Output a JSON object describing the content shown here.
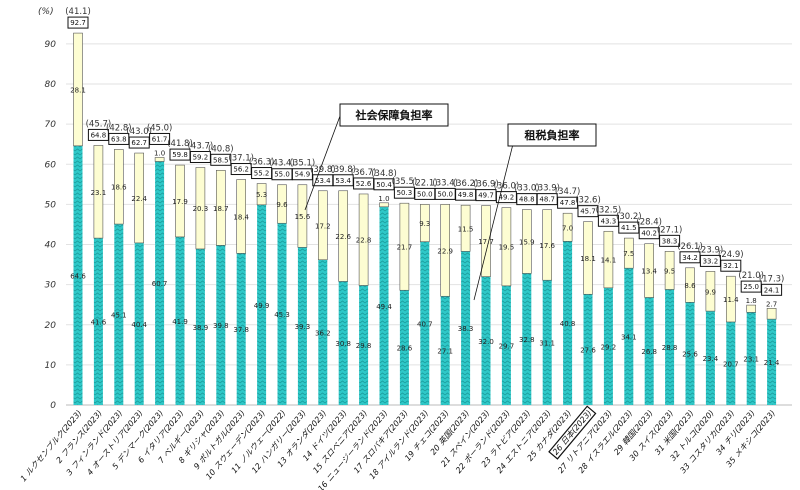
{
  "chart_data": {
    "type": "bar",
    "stacked": true,
    "ylabel": "(%)",
    "ylim": [
      0,
      90
    ],
    "yticks": [
      0,
      10,
      20,
      30,
      40,
      50,
      60,
      70,
      80,
      90
    ],
    "grid": true,
    "categories": [
      "1 ルクセンブルク(2023)",
      "2 フランス(2023)",
      "3 フィンランド(2023)",
      "4 オーストリア(2023)",
      "5 デンマーク(2023)",
      "6 イタリア(2023)",
      "7 ベルギー(2023)",
      "8 ギリシャ(2023)",
      "9 ポルトガル(2023)",
      "10 スウェーデン(2023)",
      "11 ノルウェー(2022)",
      "12 ハンガリー(2023)",
      "13 オランダ(2023)",
      "14 ドイツ(2023)",
      "15 スロベニア(2023)",
      "16 ニュージーランド(2023)",
      "17 スロバキア(2023)",
      "18 アイルランド(2023)",
      "19 チェコ(2023)",
      "20 英国(2023)",
      "21 スペイン(2023)",
      "22 ポーランド(2023)",
      "23 ラトビア(2023)",
      "24 エストニア(2023)",
      "25 カナダ(2023)",
      "26 日本(2023)",
      "27 リトアニア(2023)",
      "28 イスラエル(2023)",
      "29 韓国(2023)",
      "30 スイス(2023)",
      "31 米国(2023)",
      "32 トルコ(2020)",
      "33 コスタリカ(2023)",
      "34 チリ(2023)",
      "35 メキシコ(2023)"
    ],
    "highlight_category": "26 日本(2023)",
    "series": [
      {
        "name": "租税負担率",
        "color": "#2ec8c8",
        "values": [
          64.6,
          41.6,
          45.1,
          40.4,
          60.7,
          41.9,
          38.9,
          39.8,
          37.8,
          49.9,
          45.3,
          39.3,
          36.2,
          30.8,
          29.8,
          49.4,
          28.6,
          40.7,
          27.1,
          38.3,
          32.0,
          29.7,
          32.8,
          31.1,
          40.8,
          27.6,
          29.2,
          34.1,
          26.8,
          28.8,
          25.6,
          23.4,
          20.7,
          23.1,
          21.4
        ]
      },
      {
        "name": "社会保障負担率",
        "color": "#fdfdd2",
        "values": [
          28.1,
          23.1,
          18.6,
          22.4,
          1.0,
          17.9,
          20.3,
          18.7,
          18.4,
          5.3,
          9.6,
          15.6,
          17.2,
          22.6,
          22.8,
          1.0,
          21.7,
          9.3,
          22.9,
          11.5,
          17.7,
          19.5,
          15.9,
          17.6,
          7.0,
          18.1,
          14.1,
          7.5,
          13.4,
          9.5,
          8.6,
          9.9,
          11.4,
          1.8,
          2.7
        ]
      }
    ],
    "totals": [
      "92.7",
      "64.8",
      "63.8",
      "62.7",
      "61.7",
      "59.8",
      "59.2",
      "58.5",
      "56.2",
      "55.2",
      "55.0",
      "54.9",
      "53.4",
      "53.4",
      "52.6",
      "50.4",
      "50.3",
      "50.0",
      "50.0",
      "49.8",
      "49.7",
      "49.2",
      "48.8",
      "48.7",
      "47.8",
      "45.7",
      "43.3",
      "41.5",
      "40.2",
      "38.3",
      "34.2",
      "33.2",
      "32.1",
      "25.0",
      "24.1"
    ],
    "parenthesized": [
      "(41.1)",
      "(45.7)",
      "(42.8)",
      "(43.0)",
      "(45.0)",
      "(41.8)",
      "(43.7)",
      "(40.8)",
      "(37.1)",
      "(36.3)",
      "(43.4)",
      "(35.1)",
      "(39.8)",
      "(39.8)",
      "(36.7)",
      "(34.8)",
      "(35.5)",
      "(22.1)",
      "(33.4)",
      "(36.2)",
      "(36.9)",
      "(36.0)",
      "(33.0)",
      "(33.9)",
      "(34.7)",
      "(32.6)",
      "(32.5)",
      "(30.2)",
      "(28.4)",
      "(27.1)",
      "(26.1)",
      "(23.9)",
      "(24.9)",
      "(21.0)",
      "(17.3)"
    ],
    "annotations": [
      "社会保障負担率",
      "租税負担率"
    ]
  }
}
